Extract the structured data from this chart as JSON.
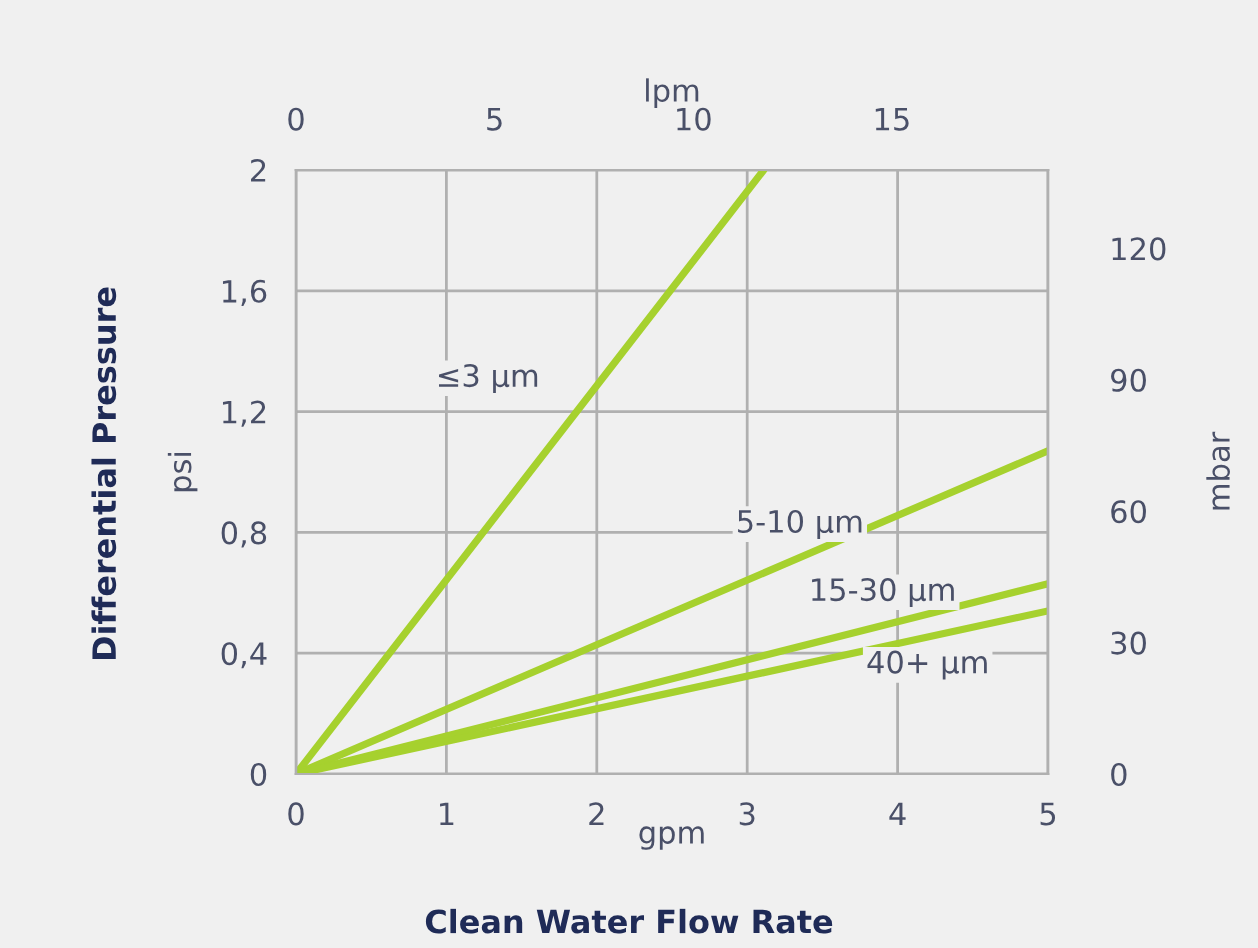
{
  "chart_data": {
    "type": "line",
    "xlabel": "gpm",
    "ylabel": "psi",
    "y2label": "mbar",
    "x2label": "lpm",
    "annotations": [
      "Differential Pressure",
      "Clean Water Flow Rate"
    ],
    "series": [
      {
        "name": "≤3 µm",
        "color": "#a6d12e",
        "x": [
          0,
          3.11
        ],
        "values": [
          0,
          2
        ]
      },
      {
        "name": "5-10 µm",
        "color": "#a6d12e",
        "x": [
          0,
          5
        ],
        "values": [
          0,
          1.07
        ]
      },
      {
        "name": "15-30 µm",
        "color": "#a6d12e",
        "x": [
          0,
          5
        ],
        "values": [
          0,
          0.63
        ]
      },
      {
        "name": "40+ µm",
        "color": "#a6d12e",
        "x": [
          0,
          5
        ],
        "values": [
          0,
          0.54
        ]
      }
    ],
    "xlim": [
      0,
      5
    ],
    "xticks": [
      0,
      1,
      2,
      3,
      4,
      5
    ],
    "ylim": [
      0,
      2
    ],
    "yticks": [
      0,
      {
        "value": 0.4,
        "label": "0,4"
      },
      {
        "value": 0.8,
        "label": "0,8"
      },
      {
        "value": 1.2,
        "label": "1,2"
      },
      {
        "value": 1.6,
        "label": "1,6"
      },
      2
    ],
    "y2lim": [
      0,
      137.9
    ],
    "y2ticks": [
      0,
      30,
      60,
      90,
      120
    ],
    "x2lim": [
      0,
      18.93
    ],
    "x2ticks": [
      0,
      5,
      10,
      15
    ],
    "grid": true,
    "line_style": "solid",
    "marker": "none"
  }
}
